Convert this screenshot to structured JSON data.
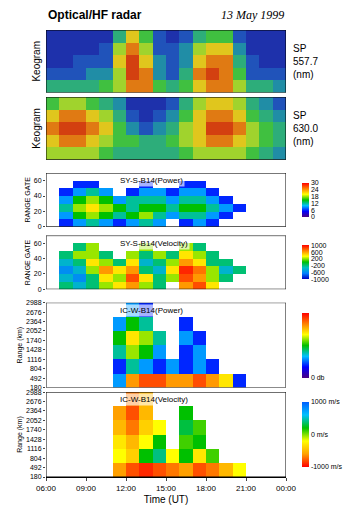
{
  "chart_data": {
    "type": "heatmap",
    "title": "Optical/HF radar",
    "subtitle": "13 May 1999",
    "x_label": "Time (UT)",
    "x": [
      6.5,
      7.5,
      8.5,
      9.5,
      10.5,
      11.5,
      12.5,
      13.5,
      14.5,
      15.5,
      16.5,
      17.5,
      18.5,
      19.5,
      20.5,
      21.5,
      22.5,
      23.5
    ],
    "xlim": [
      6,
      24
    ],
    "xticks": [
      {
        "value": 6,
        "label": "06:00"
      },
      {
        "value": 9,
        "label": "09:00"
      },
      {
        "value": 12,
        "label": "12:00"
      },
      {
        "value": 15,
        "label": "15:00"
      },
      {
        "value": 18,
        "label": "18:00"
      },
      {
        "value": 21,
        "label": "21:00"
      },
      {
        "value": 24,
        "label": "00:00"
      }
    ],
    "panels": [
      {
        "label": "Keogram",
        "side_label": [
          "SP",
          "557.7",
          "(nm)"
        ],
        "tick_labels": false,
        "y": [
          0.5,
          1.5,
          2.5,
          3.5,
          4.5
        ],
        "ylim": [
          0,
          5
        ],
        "zlim": [
          0,
          10
        ],
        "colors": [
          "#1a1a8c",
          "#2040c0",
          "#20a0a0",
          "#40c040",
          "#e0e020",
          "#e06010",
          "#c01010"
        ],
        "z": [
          [
            4,
            4,
            4,
            4,
            5,
            6,
            8,
            8,
            5,
            4,
            5,
            7,
            8,
            8,
            6,
            4,
            4,
            3
          ],
          [
            2,
            2,
            2,
            3,
            3,
            6,
            9,
            8,
            3,
            2,
            4,
            8,
            9,
            8,
            5,
            2,
            2,
            2
          ],
          [
            1,
            1,
            2,
            2,
            2,
            7,
            9,
            7,
            3,
            2,
            3,
            7,
            8,
            8,
            4,
            2,
            1,
            1
          ],
          [
            1,
            1,
            1,
            1,
            2,
            6,
            8,
            6,
            2,
            2,
            3,
            6,
            7,
            7,
            3,
            1,
            1,
            1
          ],
          [
            1,
            1,
            1,
            1,
            1,
            4,
            7,
            5,
            2,
            1,
            2,
            4,
            5,
            5,
            2,
            1,
            1,
            1
          ]
        ]
      },
      {
        "label": "Keogram",
        "side_label": [
          "SP",
          "630.0",
          "(nm)"
        ],
        "tick_labels": false,
        "y": [
          0.5,
          1.5,
          2.5,
          3.5,
          4.5
        ],
        "ylim": [
          0,
          5
        ],
        "zlim": [
          0,
          10
        ],
        "colors": [
          "#1a1a8c",
          "#2040c0",
          "#20a0a0",
          "#40c040",
          "#e0e020",
          "#e06010",
          "#c01010"
        ],
        "z": [
          [
            6,
            6,
            6,
            6,
            5,
            4,
            4,
            4,
            4,
            4,
            5,
            6,
            6,
            6,
            6,
            5,
            4,
            3
          ],
          [
            7,
            8,
            8,
            7,
            6,
            5,
            5,
            4,
            4,
            5,
            6,
            7,
            8,
            8,
            7,
            6,
            5,
            4
          ],
          [
            8,
            9,
            9,
            8,
            7,
            5,
            3,
            2,
            3,
            4,
            6,
            7,
            9,
            9,
            8,
            6,
            5,
            4
          ],
          [
            7,
            8,
            8,
            7,
            6,
            4,
            2,
            1,
            2,
            3,
            5,
            7,
            8,
            8,
            7,
            5,
            4,
            3
          ],
          [
            5,
            6,
            6,
            5,
            4,
            3,
            1,
            1,
            1,
            2,
            4,
            6,
            7,
            7,
            6,
            4,
            3,
            2
          ]
        ]
      },
      {
        "title": "SY-S-B14(Power)",
        "label": "RANGE GATE",
        "y": [
          5,
          15,
          25,
          35,
          45,
          55,
          65
        ],
        "ylim": [
          0,
          70
        ],
        "yticks": [
          0,
          20,
          40,
          60
        ],
        "zlim": [
          0,
          30
        ],
        "colorbar_ticks": [
          0,
          6,
          12,
          18,
          24,
          30
        ],
        "colors": [
          "#4b0082",
          "#0000ff",
          "#00c0ff",
          "#00c000",
          "#ffff00",
          "#ff8000",
          "#ff0000"
        ],
        "z": [
          [
            null,
            6,
            9,
            12,
            9,
            6,
            9,
            12,
            9,
            null,
            6,
            9,
            6,
            null,
            null,
            null,
            null,
            null
          ],
          [
            null,
            9,
            15,
            18,
            15,
            12,
            15,
            18,
            12,
            9,
            12,
            12,
            9,
            6,
            null,
            null,
            null,
            null
          ],
          [
            null,
            12,
            18,
            21,
            18,
            15,
            12,
            15,
            15,
            12,
            15,
            15,
            12,
            9,
            6,
            null,
            null,
            null
          ],
          [
            null,
            9,
            15,
            18,
            15,
            9,
            12,
            12,
            12,
            9,
            12,
            12,
            9,
            6,
            null,
            null,
            null,
            null
          ],
          [
            null,
            6,
            9,
            12,
            9,
            null,
            6,
            9,
            9,
            6,
            9,
            9,
            6,
            null,
            null,
            null,
            null,
            null
          ],
          [
            null,
            null,
            6,
            6,
            null,
            null,
            null,
            6,
            null,
            null,
            6,
            6,
            null,
            null,
            null,
            null,
            null,
            null
          ],
          [
            null,
            null,
            null,
            null,
            null,
            null,
            null,
            null,
            null,
            null,
            null,
            null,
            null,
            null,
            null,
            null,
            null,
            null
          ]
        ]
      },
      {
        "title": "SY-S-B14(Velocity)",
        "label": "RANGE GATE",
        "y": [
          5,
          15,
          25,
          35,
          45,
          55,
          65
        ],
        "ylim": [
          0,
          70
        ],
        "yticks": [
          0,
          20,
          40,
          60
        ],
        "zlim": [
          -1000,
          1000
        ],
        "colorbar_ticks": [
          -1000,
          -600,
          -200,
          200,
          600,
          1000
        ],
        "colors": [
          "#0000c0",
          "#0080ff",
          "#00c0c0",
          "#00c000",
          "#ffff00",
          "#ff8000",
          "#ff0000"
        ],
        "z": [
          [
            null,
            -200,
            -400,
            -200,
            200,
            400,
            600,
            200,
            -200,
            null,
            600,
            800,
            400,
            null,
            null,
            null,
            null,
            null
          ],
          [
            null,
            -400,
            -600,
            -200,
            400,
            200,
            800,
            400,
            -200,
            200,
            800,
            600,
            200,
            -200,
            null,
            null,
            null,
            null
          ],
          [
            null,
            -600,
            -400,
            200,
            600,
            400,
            600,
            -200,
            -400,
            400,
            900,
            700,
            200,
            -400,
            -200,
            null,
            null,
            null
          ],
          [
            null,
            -400,
            -200,
            400,
            200,
            -200,
            400,
            -400,
            -200,
            200,
            600,
            400,
            -200,
            -200,
            null,
            null,
            null,
            null
          ],
          [
            null,
            -200,
            200,
            200,
            -200,
            null,
            200,
            -200,
            200,
            -200,
            400,
            200,
            -200,
            null,
            null,
            null,
            null,
            null
          ],
          [
            null,
            null,
            -200,
            200,
            null,
            null,
            null,
            200,
            null,
            null,
            200,
            -200,
            null,
            null,
            null,
            null,
            null,
            null
          ],
          [
            null,
            null,
            null,
            null,
            null,
            null,
            null,
            null,
            null,
            null,
            null,
            null,
            null,
            null,
            null,
            null,
            null,
            null
          ]
        ]
      },
      {
        "title": "IC-W-B14(Power)",
        "label": "Range (km)",
        "y": [
          414,
          882,
          1350,
          1818,
          2286,
          2754
        ],
        "ylim": [
          180,
          2988
        ],
        "yticks": [
          180,
          492,
          804,
          1116,
          1428,
          1740,
          2052,
          2364,
          2676,
          2988
        ],
        "zlim": [
          0,
          30
        ],
        "colorbar_ticks": [
          {
            "value": 0,
            "label": "0 db"
          }
        ],
        "colors": [
          "#4b0082",
          "#0000ff",
          "#00c0ff",
          "#00c000",
          "#ffff00",
          "#ff8000",
          "#ff0000"
        ],
        "z": [
          [
            null,
            null,
            null,
            null,
            null,
            9,
            24,
            27,
            27,
            24,
            24,
            27,
            24,
            21,
            6,
            null,
            null,
            null
          ],
          [
            null,
            null,
            null,
            null,
            null,
            6,
            12,
            9,
            6,
            9,
            6,
            9,
            6,
            null,
            null,
            null,
            null,
            null
          ],
          [
            null,
            null,
            null,
            null,
            null,
            12,
            18,
            15,
            9,
            null,
            6,
            9,
            null,
            null,
            null,
            null,
            null,
            null
          ],
          [
            null,
            null,
            null,
            null,
            null,
            15,
            21,
            18,
            12,
            null,
            9,
            6,
            null,
            null,
            null,
            null,
            null,
            null
          ],
          [
            null,
            null,
            null,
            null,
            null,
            9,
            15,
            12,
            null,
            null,
            6,
            null,
            null,
            null,
            null,
            null,
            null,
            null
          ],
          [
            null,
            null,
            null,
            null,
            null,
            null,
            9,
            6,
            null,
            null,
            null,
            null,
            null,
            null,
            null,
            null,
            null,
            null
          ]
        ]
      },
      {
        "title": "IC-W-B14(Velocity)",
        "label": "Range (km)",
        "y": [
          414,
          882,
          1350,
          1818,
          2286,
          2754
        ],
        "ylim": [
          180,
          2988
        ],
        "yticks": [
          180,
          492,
          804,
          1116,
          1428,
          1740,
          2052,
          2364,
          2676,
          2988
        ],
        "zlim": [
          -1000,
          1000
        ],
        "colorbar_ticks": [
          {
            "value": -1000,
            "label": "-1000 m/s"
          },
          {
            "value": 0,
            "label": "0 m/s"
          },
          {
            "value": 1000,
            "label": "1000 m/s"
          }
        ],
        "colors": [
          "#ff0000",
          "#ffa000",
          "#ffff00",
          "#00c000",
          "#00c0ff",
          "#0060ff"
        ],
        "z": [
          [
            null,
            null,
            null,
            null,
            null,
            -600,
            -800,
            -900,
            -800,
            -700,
            -600,
            -800,
            -700,
            -500,
            -200,
            null,
            null,
            null
          ],
          [
            null,
            null,
            null,
            null,
            null,
            -200,
            -400,
            200,
            400,
            -200,
            200,
            -300,
            100,
            null,
            null,
            null,
            null,
            null
          ],
          [
            null,
            null,
            null,
            null,
            null,
            -300,
            -500,
            -200,
            200,
            null,
            100,
            200,
            null,
            null,
            null,
            null,
            null,
            null
          ],
          [
            null,
            null,
            null,
            null,
            null,
            -500,
            -700,
            -400,
            -200,
            null,
            300,
            100,
            null,
            null,
            null,
            null,
            null,
            null
          ],
          [
            null,
            null,
            null,
            null,
            null,
            -600,
            -800,
            -500,
            null,
            null,
            200,
            null,
            null,
            null,
            null,
            null,
            null,
            null
          ],
          [
            null,
            null,
            null,
            null,
            null,
            null,
            -700,
            -500,
            null,
            null,
            null,
            null,
            null,
            null,
            null,
            null,
            null,
            null
          ]
        ]
      }
    ]
  }
}
